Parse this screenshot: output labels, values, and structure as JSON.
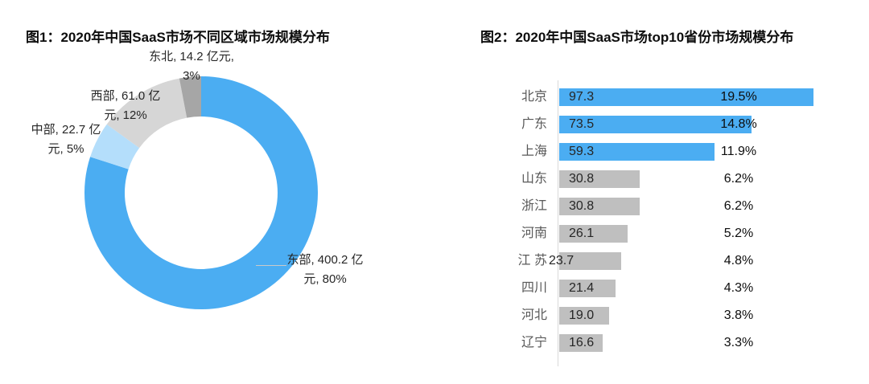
{
  "page": {
    "background": "#ffffff"
  },
  "colors": {
    "accent_blue": "#4badf2",
    "light_blue": "#b4defb",
    "light_gray": "#d6d6d6",
    "dark_gray": "#a6a6a6",
    "bar_gray": "#bfbfbf",
    "axis_gray": "#d9d9d9",
    "title_text": "#0d0d0d",
    "category_text": "#595959",
    "label_text": "#262626"
  },
  "chart_data": [
    {
      "type": "pie",
      "subtype": "donut",
      "title": "图1：2020年中国SaaS市场不同区域市场规模分布",
      "unit": "亿元",
      "start_angle_deg": 0,
      "direction": "clockwise",
      "legend": "none",
      "segments": [
        {
          "name": "东部",
          "value": 400.2,
          "pct": 80,
          "color": "#4badf2",
          "label_lines": [
            "东部, 400.2 亿",
            "元, 80%"
          ]
        },
        {
          "name": "中部",
          "value": 22.7,
          "pct": 5,
          "color": "#b4defb",
          "label_lines": [
            "中部, 22.7 亿",
            "元, 5%"
          ]
        },
        {
          "name": "西部",
          "value": 61.0,
          "pct": 12,
          "color": "#d6d6d6",
          "label_lines": [
            "西部, 61.0 亿",
            "元, 12%"
          ]
        },
        {
          "name": "东北",
          "value": 14.2,
          "pct": 3,
          "color": "#a6a6a6",
          "label_lines": [
            "东北, 14.2 亿元,",
            "3%"
          ]
        }
      ]
    },
    {
      "type": "bar",
      "orientation": "horizontal",
      "title": "图2：2020年中国SaaS市场top10省份市场规模分布",
      "unit": "亿元",
      "xlim": [
        0,
        100
      ],
      "grid": "off",
      "legend": "none",
      "rows": [
        {
          "province": "北京",
          "value": 97.3,
          "value_label": "97.3",
          "pct_label": "19.5%",
          "color": "#4badf2",
          "value_label_outside": false
        },
        {
          "province": "广东",
          "value": 73.5,
          "value_label": "73.5",
          "pct_label": "14.8%",
          "color": "#4badf2",
          "value_label_outside": false
        },
        {
          "province": "上海",
          "value": 59.3,
          "value_label": "59.3",
          "pct_label": "11.9%",
          "color": "#4badf2",
          "value_label_outside": false
        },
        {
          "province": "山东",
          "value": 30.8,
          "value_label": "30.8",
          "pct_label": "6.2%",
          "color": "#bfbfbf",
          "value_label_outside": false
        },
        {
          "province": "浙江",
          "value": 30.8,
          "value_label": "30.8",
          "pct_label": "6.2%",
          "color": "#bfbfbf",
          "value_label_outside": false
        },
        {
          "province": "河南",
          "value": 26.1,
          "value_label": "26.1",
          "pct_label": "5.2%",
          "color": "#bfbfbf",
          "value_label_outside": false
        },
        {
          "province": "江 苏",
          "value": 23.7,
          "value_label": "23.7",
          "pct_label": "4.8%",
          "color": "#bfbfbf",
          "value_label_outside": true
        },
        {
          "province": "四川",
          "value": 21.4,
          "value_label": "21.4",
          "pct_label": "4.3%",
          "color": "#bfbfbf",
          "value_label_outside": false
        },
        {
          "province": "河北",
          "value": 19.0,
          "value_label": "19.0",
          "pct_label": "3.8%",
          "color": "#bfbfbf",
          "value_label_outside": false
        },
        {
          "province": "辽宁",
          "value": 16.6,
          "value_label": "16.6",
          "pct_label": "3.3%",
          "color": "#bfbfbf",
          "value_label_outside": false
        }
      ]
    }
  ]
}
